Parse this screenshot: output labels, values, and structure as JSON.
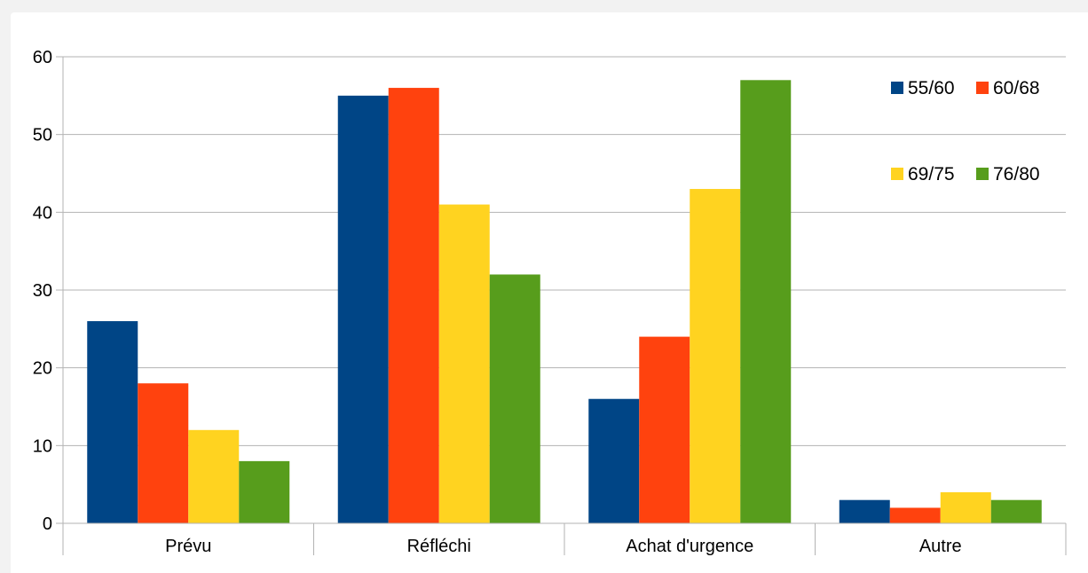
{
  "chart_data": {
    "type": "bar",
    "title": "",
    "xlabel": "",
    "ylabel": "",
    "ylim": [
      0,
      60
    ],
    "yticks": [
      0,
      10,
      20,
      30,
      40,
      50,
      60
    ],
    "grid": true,
    "legend_position": "top-right",
    "categories": [
      "Prévu",
      "Réfléchi",
      "Achat d'urgence",
      "Autre"
    ],
    "series": [
      {
        "name": "55/60",
        "color": "#004586",
        "values": [
          26,
          55,
          16,
          3
        ]
      },
      {
        "name": "60/68",
        "color": "#ff420e",
        "values": [
          18,
          56,
          24,
          2
        ]
      },
      {
        "name": "69/75",
        "color": "#ffd320",
        "values": [
          12,
          41,
          43,
          4
        ]
      },
      {
        "name": "76/80",
        "color": "#579d1c",
        "values": [
          8,
          32,
          57,
          3
        ]
      }
    ]
  }
}
